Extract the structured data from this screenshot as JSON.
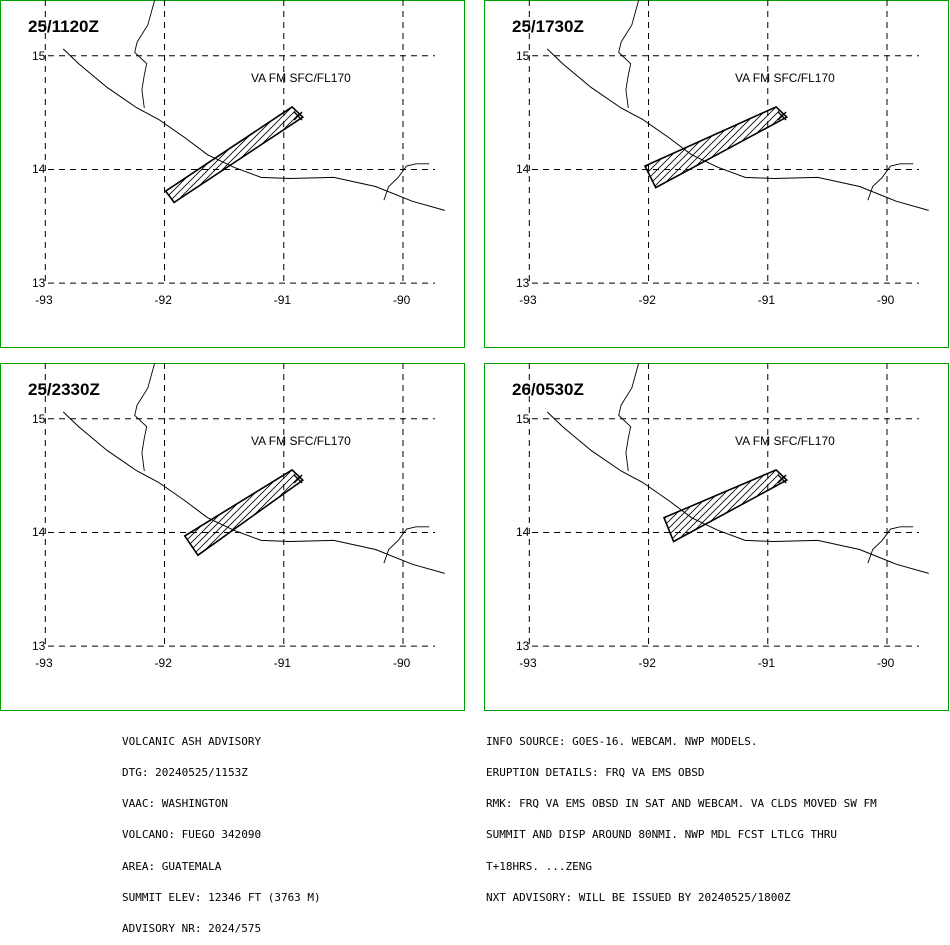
{
  "panels": [
    {
      "time": "25/1120Z",
      "va_label": "VA FM SFC/FL170",
      "polygon": [
        [
          -91.99,
          13.81
        ],
        [
          -91.92,
          13.71
        ],
        [
          -90.84,
          14.46
        ],
        [
          -90.93,
          14.55
        ],
        [
          -91.99,
          13.81
        ]
      ]
    },
    {
      "time": "25/1730Z",
      "va_label": "VA FM SFC/FL170",
      "polygon": [
        [
          -92.03,
          14.03
        ],
        [
          -91.94,
          13.84
        ],
        [
          -90.84,
          14.46
        ],
        [
          -90.93,
          14.55
        ],
        [
          -92.03,
          14.03
        ]
      ]
    },
    {
      "time": "25/2330Z",
      "va_label": "VA FM SFC/FL170",
      "polygon": [
        [
          -91.83,
          13.97
        ],
        [
          -91.72,
          13.8
        ],
        [
          -90.84,
          14.46
        ],
        [
          -90.93,
          14.55
        ],
        [
          -91.83,
          13.97
        ]
      ]
    },
    {
      "time": "26/0530Z",
      "va_label": "VA FM SFC/FL170",
      "polygon": [
        [
          -91.87,
          14.13
        ],
        [
          -91.79,
          13.92
        ],
        [
          -90.84,
          14.46
        ],
        [
          -90.93,
          14.55
        ],
        [
          -91.87,
          14.13
        ]
      ]
    }
  ],
  "axes": {
    "lon_ticks": [
      -93,
      -92,
      -91,
      -90
    ],
    "lat_ticks": [
      13,
      14,
      15
    ],
    "lon_labels": [
      "-93",
      "-92",
      "-91",
      "-90"
    ],
    "lat_labels": [
      "13",
      "14",
      "15"
    ],
    "lon_range": [
      -93.38,
      -89.48
    ],
    "lat_range": [
      15.49,
      12.43
    ]
  },
  "volcano": {
    "name": "FUEGO",
    "lon": -90.88,
    "lat": 14.47
  },
  "coastline": [
    [
      -92.85,
      15.06
    ],
    [
      -92.72,
      14.93
    ],
    [
      -92.48,
      14.72
    ],
    [
      -92.23,
      14.54
    ],
    [
      -92.05,
      14.44
    ],
    [
      -91.83,
      14.28
    ],
    [
      -91.64,
      14.13
    ],
    [
      -91.42,
      14.02
    ],
    [
      -91.19,
      13.93
    ],
    [
      -90.95,
      13.92
    ],
    [
      -90.58,
      13.93
    ],
    [
      -90.23,
      13.85
    ],
    [
      -89.92,
      13.72
    ],
    [
      -89.65,
      13.64
    ]
  ],
  "border_west": [
    [
      -92.17,
      14.54
    ],
    [
      -92.19,
      14.7
    ],
    [
      -92.17,
      14.83
    ],
    [
      -92.15,
      14.93
    ],
    [
      -92.25,
      15.03
    ],
    [
      -92.23,
      15.12
    ],
    [
      -92.14,
      15.27
    ],
    [
      -92.08,
      15.5
    ]
  ],
  "border_east": [
    [
      -90.16,
      13.73
    ],
    [
      -90.12,
      13.85
    ],
    [
      -90.04,
      13.93
    ],
    [
      -89.97,
      14.03
    ],
    [
      -89.89,
      14.05
    ],
    [
      -89.78,
      14.05
    ]
  ],
  "advisory_left": [
    "VOLCANIC ASH ADVISORY",
    "DTG: 20240525/1153Z",
    "VAAC: WASHINGTON",
    "VOLCANO: FUEGO 342090",
    "AREA: GUATEMALA",
    "SUMMIT ELEV: 12346 FT (3763 M)",
    "ADVISORY NR: 2024/575"
  ],
  "advisory_right": [
    "INFO SOURCE: GOES-16. WEBCAM. NWP MODELS.",
    "ERUPTION DETAILS: FRQ VA EMS OBSD",
    "RMK: FRQ VA EMS OBSD IN SAT AND WEBCAM. VA CLDS MOVED SW FM",
    "SUMMIT AND DISP AROUND 80NMI. NWP MDL FCST LTLCG THRU",
    "T+18HRS. ...ZENG",
    "NXT ADVISORY: WILL BE ISSUED BY 20240525/1800Z"
  ],
  "colors": {
    "border": "#00a000",
    "lines": "#000000"
  }
}
